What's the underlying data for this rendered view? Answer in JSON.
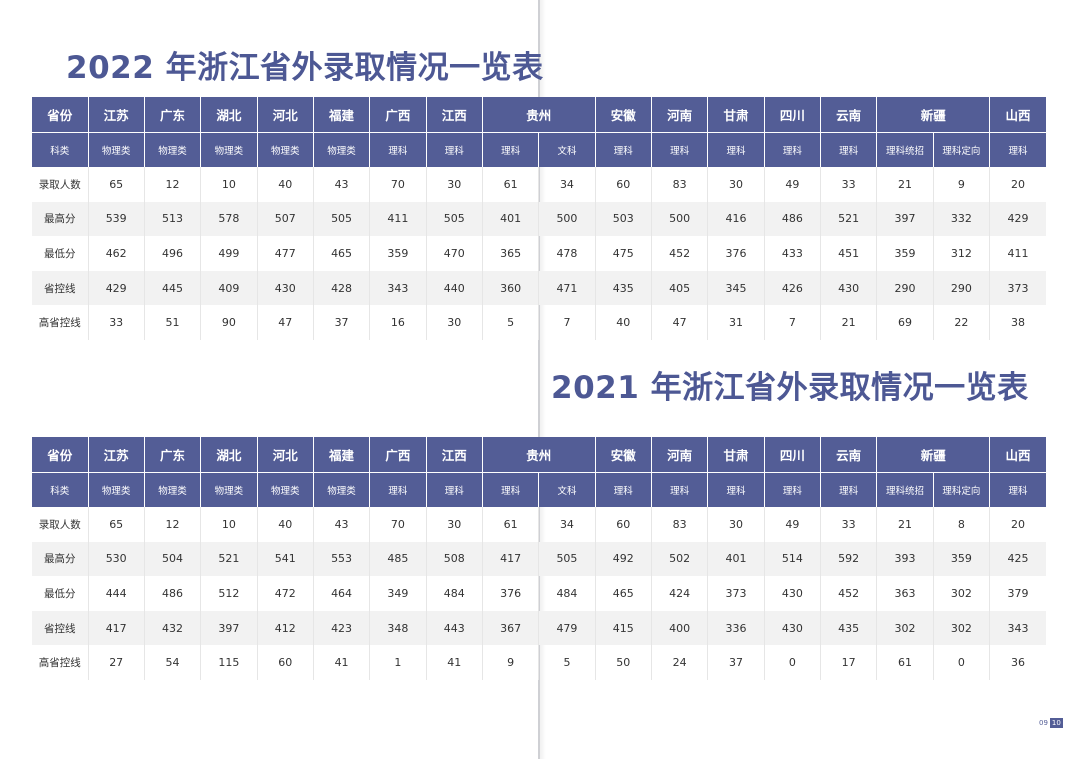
{
  "colors": {
    "header_bg": "#535d96",
    "title": "#4d5894",
    "shade_row": "#f2f2f2"
  },
  "tables": [
    {
      "title": "2022 年浙江省外录取情况一览表",
      "header_label": "省份",
      "provinces": [
        {
          "name": "江苏",
          "span": 1
        },
        {
          "name": "广东",
          "span": 1
        },
        {
          "name": "湖北",
          "span": 1
        },
        {
          "name": "河北",
          "span": 1
        },
        {
          "name": "福建",
          "span": 1
        },
        {
          "name": "广西",
          "span": 1
        },
        {
          "name": "江西",
          "span": 1
        },
        {
          "name": "贵州",
          "span": 2
        },
        {
          "name": "安徽",
          "span": 1
        },
        {
          "name": "河南",
          "span": 1
        },
        {
          "name": "甘肃",
          "span": 1
        },
        {
          "name": "四川",
          "span": 1
        },
        {
          "name": "云南",
          "span": 1
        },
        {
          "name": "新疆",
          "span": 2
        },
        {
          "name": "山西",
          "span": 1
        }
      ],
      "subject_label": "科类",
      "subjects": [
        "物理类",
        "物理类",
        "物理类",
        "物理类",
        "物理类",
        "理科",
        "理科",
        "理科",
        "文科",
        "理科",
        "理科",
        "理科",
        "理科",
        "理科",
        "理科统招",
        "理科定向",
        "理科"
      ],
      "rows": [
        {
          "label": "录取人数",
          "values": [
            "65",
            "12",
            "10",
            "40",
            "43",
            "70",
            "30",
            "61",
            "34",
            "60",
            "83",
            "30",
            "49",
            "33",
            "21",
            "9",
            "20"
          ]
        },
        {
          "label": "最高分",
          "values": [
            "539",
            "513",
            "578",
            "507",
            "505",
            "411",
            "505",
            "401",
            "500",
            "503",
            "500",
            "416",
            "486",
            "521",
            "397",
            "332",
            "429"
          ]
        },
        {
          "label": "最低分",
          "values": [
            "462",
            "496",
            "499",
            "477",
            "465",
            "359",
            "470",
            "365",
            "478",
            "475",
            "452",
            "376",
            "433",
            "451",
            "359",
            "312",
            "411"
          ]
        },
        {
          "label": "省控线",
          "values": [
            "429",
            "445",
            "409",
            "430",
            "428",
            "343",
            "440",
            "360",
            "471",
            "435",
            "405",
            "345",
            "426",
            "430",
            "290",
            "290",
            "373"
          ]
        },
        {
          "label": "高省控线",
          "values": [
            "33",
            "51",
            "90",
            "47",
            "37",
            "16",
            "30",
            "5",
            "7",
            "40",
            "47",
            "31",
            "7",
            "21",
            "69",
            "22",
            "38"
          ]
        }
      ]
    },
    {
      "title": "2021 年浙江省外录取情况一览表",
      "header_label": "省份",
      "provinces": [
        {
          "name": "江苏",
          "span": 1
        },
        {
          "name": "广东",
          "span": 1
        },
        {
          "name": "湖北",
          "span": 1
        },
        {
          "name": "河北",
          "span": 1
        },
        {
          "name": "福建",
          "span": 1
        },
        {
          "name": "广西",
          "span": 1
        },
        {
          "name": "江西",
          "span": 1
        },
        {
          "name": "贵州",
          "span": 2
        },
        {
          "name": "安徽",
          "span": 1
        },
        {
          "name": "河南",
          "span": 1
        },
        {
          "name": "甘肃",
          "span": 1
        },
        {
          "name": "四川",
          "span": 1
        },
        {
          "name": "云南",
          "span": 1
        },
        {
          "name": "新疆",
          "span": 2
        },
        {
          "name": "山西",
          "span": 1
        }
      ],
      "subject_label": "科类",
      "subjects": [
        "物理类",
        "物理类",
        "物理类",
        "物理类",
        "物理类",
        "理科",
        "理科",
        "理科",
        "文科",
        "理科",
        "理科",
        "理科",
        "理科",
        "理科",
        "理科统招",
        "理科定向",
        "理科"
      ],
      "rows": [
        {
          "label": "录取人数",
          "values": [
            "65",
            "12",
            "10",
            "40",
            "43",
            "70",
            "30",
            "61",
            "34",
            "60",
            "83",
            "30",
            "49",
            "33",
            "21",
            "8",
            "20"
          ]
        },
        {
          "label": "最高分",
          "values": [
            "530",
            "504",
            "521",
            "541",
            "553",
            "485",
            "508",
            "417",
            "505",
            "492",
            "502",
            "401",
            "514",
            "592",
            "393",
            "359",
            "425"
          ]
        },
        {
          "label": "最低分",
          "values": [
            "444",
            "486",
            "512",
            "472",
            "464",
            "349",
            "484",
            "376",
            "484",
            "465",
            "424",
            "373",
            "430",
            "452",
            "363",
            "302",
            "379"
          ]
        },
        {
          "label": "省控线",
          "values": [
            "417",
            "432",
            "397",
            "412",
            "423",
            "348",
            "443",
            "367",
            "479",
            "415",
            "400",
            "336",
            "430",
            "435",
            "302",
            "302",
            "343"
          ]
        },
        {
          "label": "高省控线",
          "values": [
            "27",
            "54",
            "115",
            "60",
            "41",
            "1",
            "41",
            "9",
            "5",
            "50",
            "24",
            "37",
            "0",
            "17",
            "61",
            "0",
            "36"
          ]
        }
      ]
    }
  ],
  "page_numbers": {
    "left": "09",
    "right": "10"
  }
}
